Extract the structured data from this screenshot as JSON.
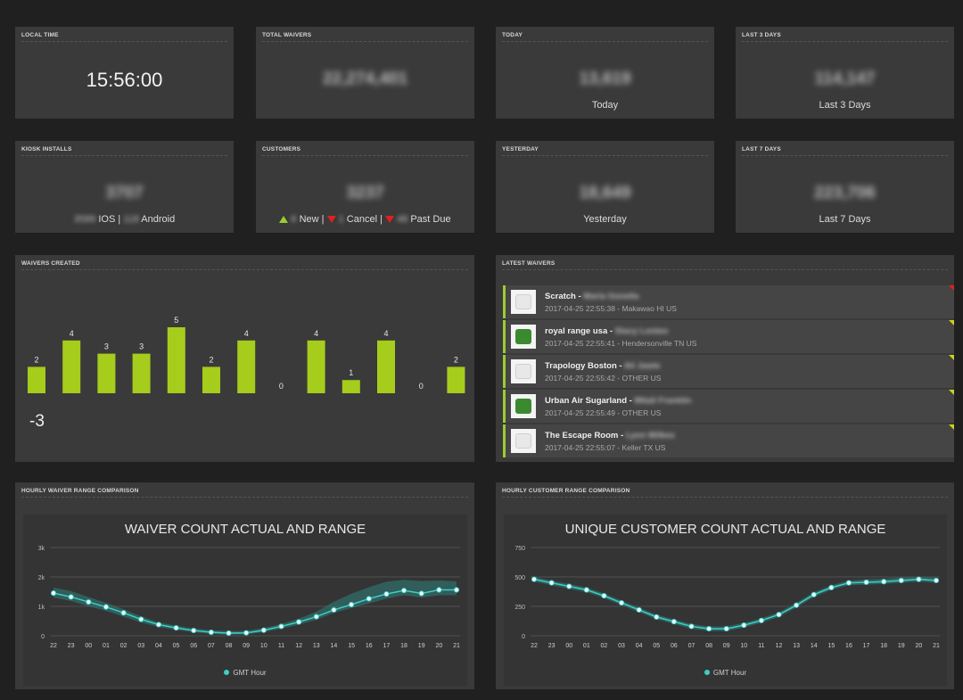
{
  "local_time": {
    "title": "LOCAL TIME",
    "value": "15:56:00"
  },
  "total_waivers": {
    "title": "TOTAL WAIVERS",
    "value": "22,274,401"
  },
  "today": {
    "title": "TODAY",
    "value": "13,619",
    "label": "Today"
  },
  "last3": {
    "title": "LAST 3 DAYS",
    "value": "114,147",
    "label": "Last 3 Days"
  },
  "kiosk": {
    "title": "KIOSK INSTALLS",
    "value": "3707",
    "ios_count": "3589",
    "ios_label": "IOS",
    "sep": "|",
    "android_count": "118",
    "android_label": "Android"
  },
  "customers": {
    "title": "CUSTOMERS",
    "value": "3237",
    "new_count": "6",
    "new_label": "New",
    "cancel_count": "1",
    "cancel_label": "Cancel",
    "pastdue_count": "48",
    "pastdue_label": "Past Due",
    "sep": "|"
  },
  "yesterday": {
    "title": "YESTERDAY",
    "value": "18,649",
    "label": "Yesterday"
  },
  "last7": {
    "title": "LAST 7 DAYS",
    "value": "223,706",
    "label": "Last 7 Days"
  },
  "waivers_created": {
    "title": "WAIVERS CREATED",
    "delta": "-3",
    "bar_color": "#a6cc1c",
    "chart_data": {
      "type": "bar",
      "values": [
        2,
        4,
        3,
        3,
        5,
        2,
        4,
        0,
        4,
        1,
        4,
        0,
        2
      ]
    }
  },
  "latest": {
    "title": "LATEST WAIVERS",
    "items": [
      {
        "name": "Scratch - ",
        "person": "Maria Gonella",
        "meta": "2017-04-25 22:55:38 - Makawao HI US",
        "flag": "#e02020",
        "logo": "light"
      },
      {
        "name": "royal range usa - ",
        "person": "Stacy Lonteo",
        "meta": "2017-04-25 22:55:41 - Hendersonville TN US",
        "flag": "#c8d21e",
        "logo": "green"
      },
      {
        "name": "Trapology Boston - ",
        "person": "Ali Jawie",
        "meta": "2017-04-25 22:55:42 - OTHER US",
        "flag": "#c8d21e",
        "logo": "light"
      },
      {
        "name": "Urban Air Sugarland - ",
        "person": "Mitali Franklin",
        "meta": "2017-04-25 22:55:49 - OTHER US",
        "flag": "#c8d21e",
        "logo": "green"
      },
      {
        "name": "The Escape Room - ",
        "person": "Lynn Wilkes",
        "meta": "2017-04-25 22:55:07 - Keller TX US",
        "flag": "#c8d21e",
        "logo": "light"
      }
    ]
  },
  "hourly_waiver": {
    "title": "HOURLY WAIVER RANGE COMPARISON",
    "chart_data": {
      "type": "line",
      "title": "WAIVER COUNT ACTUAL AND RANGE",
      "x": [
        "22",
        "23",
        "00",
        "01",
        "02",
        "03",
        "04",
        "05",
        "06",
        "07",
        "08",
        "09",
        "10",
        "11",
        "12",
        "13",
        "14",
        "15",
        "16",
        "17",
        "18",
        "19",
        "20",
        "21"
      ],
      "yticks": [
        "0",
        "1k",
        "2k",
        "3k"
      ],
      "ylim": [
        0,
        3000
      ],
      "legend": "GMT Hour",
      "series": [
        {
          "values": [
            1450,
            1320,
            1150,
            980,
            780,
            560,
            380,
            270,
            180,
            120,
            90,
            100,
            190,
            320,
            470,
            650,
            880,
            1060,
            1260,
            1420,
            1540,
            1440,
            1560,
            1560
          ]
        }
      ],
      "range_upper": [
        1640,
        1520,
        1320,
        1120,
        900,
        660,
        460,
        340,
        250,
        190,
        160,
        170,
        260,
        400,
        580,
        820,
        1160,
        1430,
        1650,
        1840,
        1900,
        1860,
        1880,
        1850
      ],
      "range_lower": [
        1300,
        1180,
        1000,
        850,
        650,
        450,
        300,
        200,
        120,
        60,
        40,
        50,
        120,
        240,
        380,
        540,
        780,
        940,
        1100,
        1260,
        1380,
        1300,
        1380,
        1380
      ],
      "line_color": "#3ad0c8",
      "range_color": "#2f7f7a"
    }
  },
  "hourly_customer": {
    "title": "HOURLY CUSTOMER RANGE COMPARISON",
    "chart_data": {
      "type": "line",
      "title": "UNIQUE CUSTOMER COUNT ACTUAL AND RANGE",
      "x": [
        "22",
        "23",
        "00",
        "01",
        "02",
        "03",
        "04",
        "05",
        "06",
        "07",
        "08",
        "09",
        "10",
        "11",
        "12",
        "13",
        "14",
        "15",
        "16",
        "17",
        "18",
        "19",
        "20",
        "21"
      ],
      "yticks": [
        "0",
        "250",
        "500",
        "750"
      ],
      "ylim": [
        0,
        750
      ],
      "legend": "GMT Hour",
      "series": [
        {
          "values": [
            480,
            450,
            420,
            390,
            340,
            280,
            220,
            160,
            120,
            80,
            60,
            60,
            90,
            130,
            180,
            260,
            350,
            410,
            450,
            455,
            460,
            470,
            480,
            470
          ]
        }
      ],
      "range_upper": [
        500,
        470,
        440,
        410,
        360,
        300,
        240,
        180,
        140,
        100,
        80,
        80,
        110,
        150,
        200,
        280,
        370,
        430,
        470,
        480,
        485,
        495,
        500,
        495
      ],
      "range_lower": [
        460,
        430,
        400,
        370,
        320,
        260,
        200,
        140,
        100,
        60,
        40,
        40,
        70,
        110,
        160,
        240,
        330,
        390,
        430,
        435,
        440,
        450,
        460,
        450
      ],
      "line_color": "#3ad0c8",
      "range_color": "#2f7f7a"
    }
  }
}
